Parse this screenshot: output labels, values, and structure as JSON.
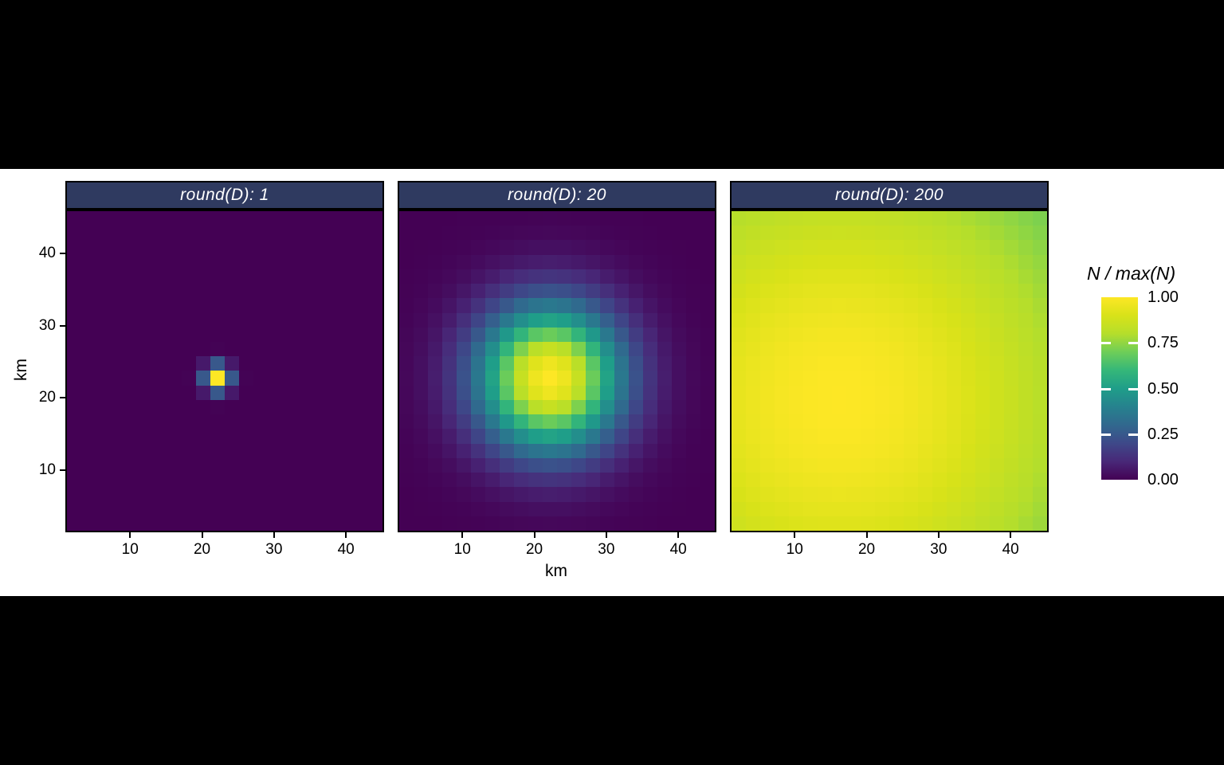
{
  "style": {
    "page_bg": "#000000",
    "plot_bg": "#ffffff",
    "strip_bg": "#2f3a60",
    "strip_text": "#ffffff",
    "panel_border": "#000000",
    "text_color": "#000000"
  },
  "chart_data": {
    "type": "heatmap",
    "facet_variable": "round(D)",
    "facets": [
      {
        "label": "round(D): 1",
        "D": 1,
        "gaussian": {
          "cx": 22,
          "cy": 22,
          "sigma": 1.2,
          "floor": 0.0
        }
      },
      {
        "label": "round(D): 20",
        "D": 20,
        "gaussian": {
          "cx": 22,
          "cy": 22,
          "sigma": 7.0,
          "floor": 0.0
        }
      },
      {
        "label": "round(D): 200",
        "D": 200,
        "gaussian": {
          "cx": 16,
          "cy": 19,
          "sigma": 27.0,
          "floor": 0.55
        }
      }
    ],
    "value_model": "value = floor + (1 - floor) * exp(-((x-cx)^2 + (y-cy)^2) / (2*sigma^2))",
    "grid": {
      "n_cols": 22,
      "n_rows": 22,
      "cell_km": 2,
      "x_cell_centers": "2,4,...,44",
      "y_cell_centers": "2,4,...,44"
    },
    "xlabel": "km",
    "ylabel": "km",
    "x_ticks": [
      10,
      20,
      30,
      40
    ],
    "y_ticks": [
      10,
      20,
      30,
      40
    ],
    "x_domain": [
      1,
      45.3
    ],
    "y_domain": [
      1.4,
      46.1
    ],
    "grid_lines": false,
    "legend": {
      "position": "right",
      "title": "N / max(N)",
      "tick_values": [
        1.0,
        0.75,
        0.5,
        0.25,
        0.0
      ],
      "tick_labels": [
        "1.00",
        "0.75",
        "0.50",
        "0.25",
        "0.00"
      ],
      "inner_tick_values": [
        0.75,
        0.5,
        0.25
      ]
    },
    "colormap": {
      "name": "viridis",
      "stops": [
        "#440154",
        "#482878",
        "#3e4989",
        "#31688e",
        "#26828e",
        "#1f9e89",
        "#35b779",
        "#6ece58",
        "#b5de2b",
        "#d8e219",
        "#fde725"
      ]
    }
  }
}
